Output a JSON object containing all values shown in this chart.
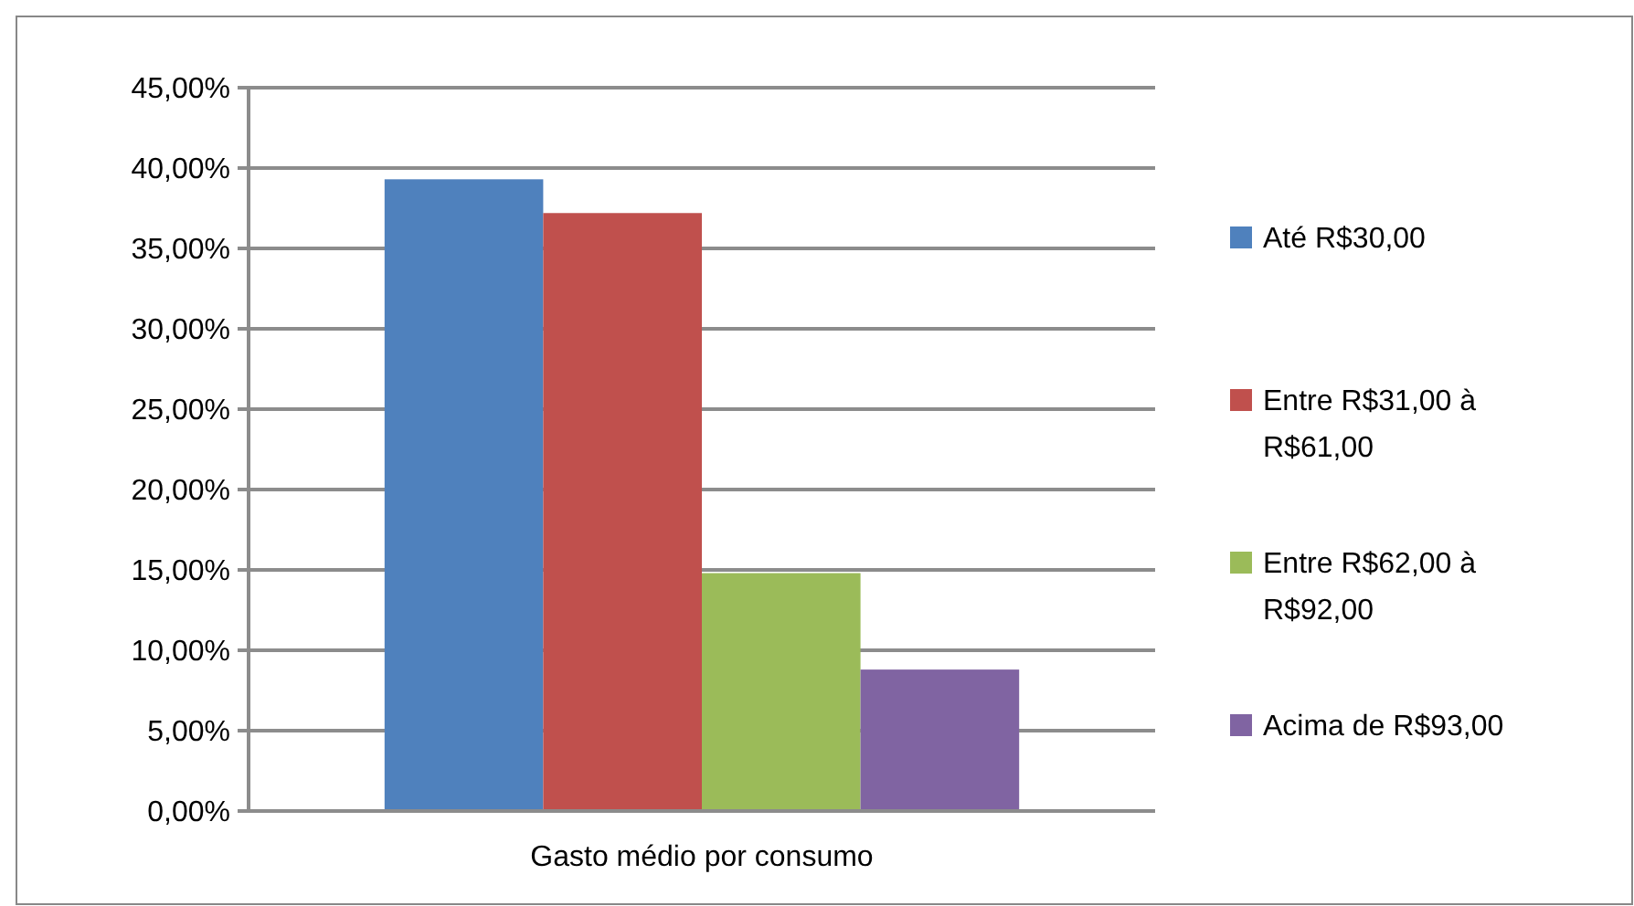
{
  "chart_data": {
    "type": "bar",
    "categories": [
      "Gasto médio por consumo"
    ],
    "series": [
      {
        "name": "Até R$30,00",
        "color": "#4f81bd",
        "values": [
          39.3
        ]
      },
      {
        "name": "Entre R$31,00 à R$61,00",
        "color": "#c0504d",
        "values": [
          37.2
        ]
      },
      {
        "name": "Entre R$62,00 à R$92,00",
        "color": "#9bbb59",
        "values": [
          14.8
        ]
      },
      {
        "name": "Acima de R$93,00",
        "color": "#8064a2",
        "values": [
          8.8
        ]
      }
    ],
    "ylim": [
      0,
      45
    ],
    "yticks": [
      {
        "value": 0,
        "label": "0,00%"
      },
      {
        "value": 5,
        "label": "5,00%"
      },
      {
        "value": 10,
        "label": "10,00%"
      },
      {
        "value": 15,
        "label": "15,00%"
      },
      {
        "value": 20,
        "label": "20,00%"
      },
      {
        "value": 25,
        "label": "25,00%"
      },
      {
        "value": 30,
        "label": "30,00%"
      },
      {
        "value": 35,
        "label": "35,00%"
      },
      {
        "value": 40,
        "label": "40,00%"
      },
      {
        "value": 45,
        "label": "45,00%"
      }
    ],
    "grid": "y",
    "legend": "right"
  }
}
